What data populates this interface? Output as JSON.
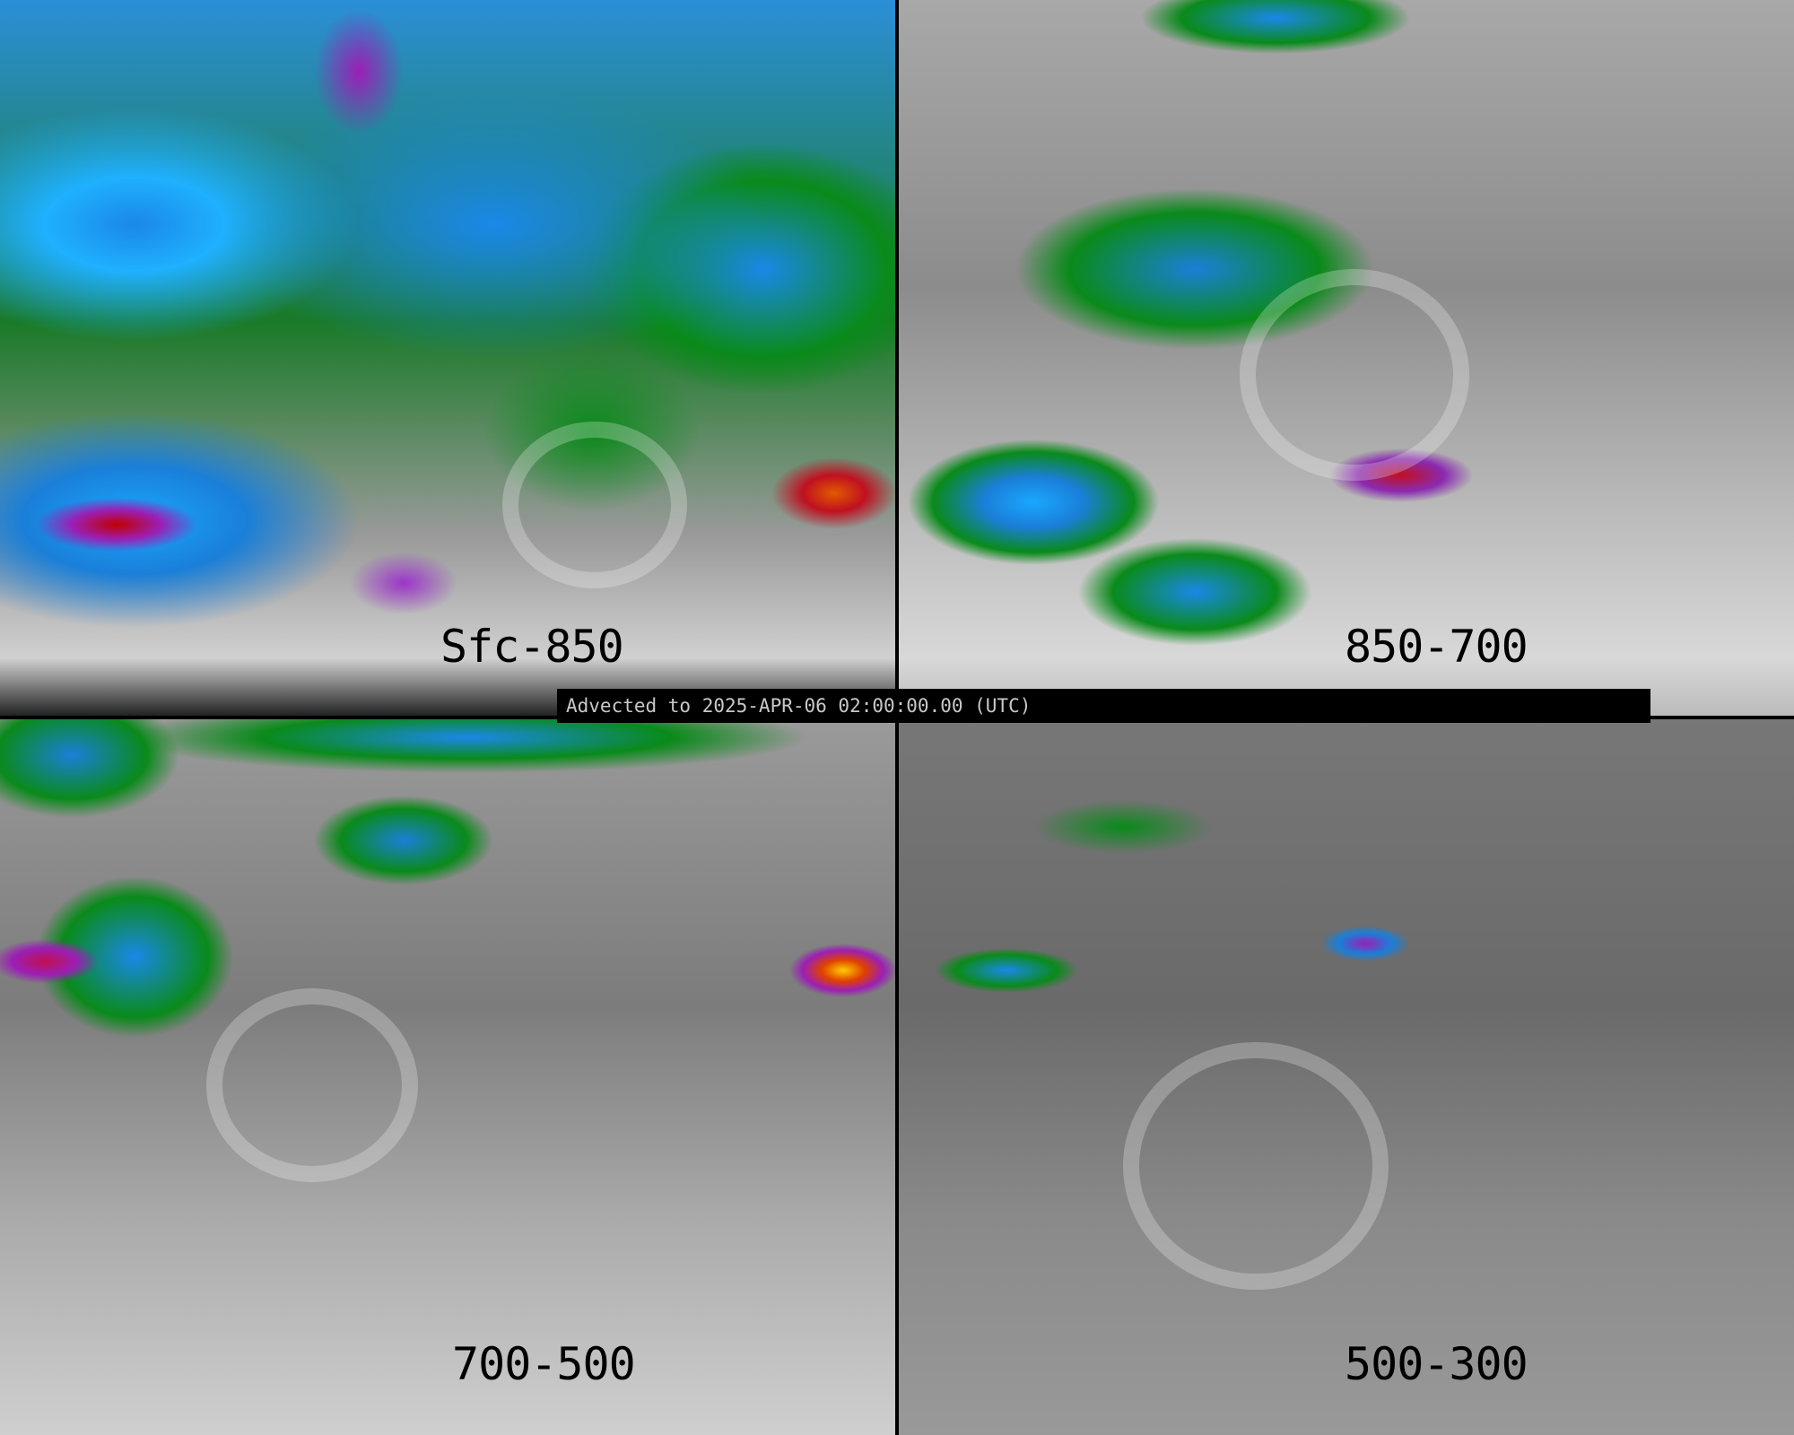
{
  "banner": {
    "text": "Advected to 2025-APR-06 02:00:00.00 (UTC)"
  },
  "panels": [
    {
      "label": "Sfc-850"
    },
    {
      "label": "850-700"
    },
    {
      "label": "700-500"
    },
    {
      "label": "500-300"
    }
  ],
  "colors": {
    "low": "#8c8c8c",
    "green": "#0a8a1a",
    "blue": "#1a88e8",
    "cyan": "#1fb0ff",
    "purple": "#9b1fb5",
    "red": "#c01020",
    "orange": "#e05a00"
  }
}
